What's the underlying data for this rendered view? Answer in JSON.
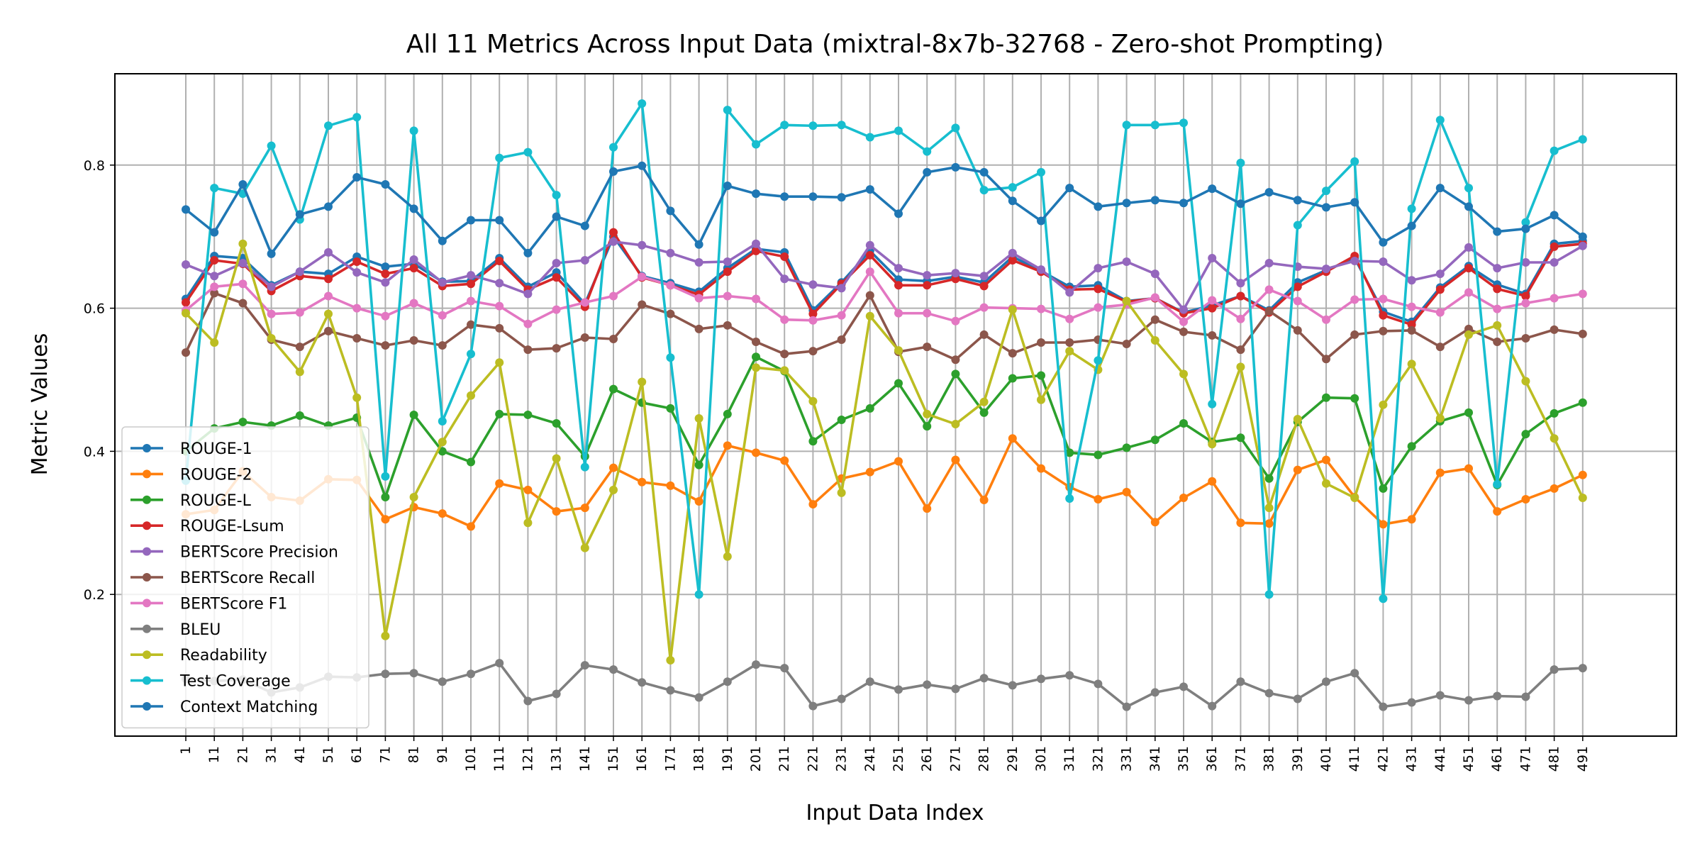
{
  "chart_data": {
    "type": "line",
    "title": "All 11 Metrics Across Input Data (mixtral-8x7b-32768 - Zero-shot Prompting)",
    "xlabel": "Input Data Index",
    "ylabel": "Metric Values",
    "ylim": [
      0.0,
      0.93
    ],
    "yticks": [
      0.2,
      0.4,
      0.6,
      0.8
    ],
    "grid": true,
    "legend_position": "lower-left",
    "x": [
      1,
      11,
      21,
      31,
      41,
      51,
      61,
      71,
      81,
      91,
      101,
      111,
      121,
      131,
      141,
      151,
      161,
      171,
      181,
      191,
      201,
      211,
      221,
      231,
      241,
      251,
      261,
      271,
      281,
      291,
      301,
      311,
      321,
      331,
      341,
      351,
      361,
      371,
      381,
      391,
      401,
      411,
      421,
      431,
      441,
      451,
      461,
      471,
      481,
      491
    ],
    "series": [
      {
        "name": "ROUGE-1",
        "color": "#1f77b4",
        "values": [
          0.613,
          0.673,
          0.67,
          0.632,
          0.651,
          0.648,
          0.672,
          0.658,
          0.662,
          0.637,
          0.638,
          0.67,
          0.63,
          0.65,
          0.606,
          0.7,
          0.645,
          0.635,
          0.623,
          0.656,
          0.683,
          0.678,
          0.597,
          0.636,
          0.68,
          0.64,
          0.638,
          0.644,
          0.636,
          0.672,
          0.652,
          0.63,
          0.632,
          0.61,
          0.614,
          0.594,
          0.604,
          0.617,
          0.597,
          0.636,
          0.653,
          0.67,
          0.595,
          0.581,
          0.629,
          0.659,
          0.633,
          0.62,
          0.69,
          0.694
        ]
      },
      {
        "name": "ROUGE-2",
        "color": "#ff7f0e",
        "values": [
          0.312,
          0.318,
          0.372,
          0.336,
          0.331,
          0.361,
          0.36,
          0.305,
          0.322,
          0.313,
          0.295,
          0.355,
          0.346,
          0.316,
          0.321,
          0.377,
          0.357,
          0.352,
          0.33,
          0.408,
          0.398,
          0.387,
          0.326,
          0.362,
          0.371,
          0.386,
          0.32,
          0.388,
          0.332,
          0.418,
          0.376,
          0.35,
          0.333,
          0.343,
          0.301,
          0.335,
          0.358,
          0.3,
          0.299,
          0.374,
          0.388,
          0.336,
          0.298,
          0.305,
          0.37,
          0.376,
          0.316,
          0.333,
          0.348,
          0.367
        ]
      },
      {
        "name": "ROUGE-L",
        "color": "#2ca02c",
        "values": [
          0.4,
          0.432,
          0.441,
          0.436,
          0.45,
          0.436,
          0.447,
          0.336,
          0.451,
          0.4,
          0.385,
          0.452,
          0.451,
          0.439,
          0.393,
          0.487,
          0.468,
          0.46,
          0.381,
          0.452,
          0.532,
          0.512,
          0.414,
          0.444,
          0.46,
          0.495,
          0.435,
          0.508,
          0.454,
          0.502,
          0.506,
          0.398,
          0.395,
          0.405,
          0.416,
          0.439,
          0.413,
          0.419,
          0.362,
          0.441,
          0.475,
          0.474,
          0.348,
          0.407,
          0.442,
          0.454,
          0.353,
          0.424,
          0.453,
          0.468
        ]
      },
      {
        "name": "ROUGE-Lsum",
        "color": "#d62728",
        "values": [
          0.608,
          0.667,
          0.662,
          0.624,
          0.645,
          0.641,
          0.665,
          0.648,
          0.656,
          0.631,
          0.634,
          0.666,
          0.626,
          0.643,
          0.602,
          0.706,
          0.643,
          0.632,
          0.619,
          0.651,
          0.68,
          0.672,
          0.592,
          0.634,
          0.674,
          0.632,
          0.632,
          0.641,
          0.631,
          0.667,
          0.651,
          0.626,
          0.627,
          0.609,
          0.614,
          0.593,
          0.6,
          0.617,
          0.594,
          0.63,
          0.651,
          0.673,
          0.59,
          0.577,
          0.626,
          0.656,
          0.627,
          0.617,
          0.686,
          0.69
        ]
      },
      {
        "name": "BERTScore Precision",
        "color": "#9467bd",
        "values": [
          0.661,
          0.645,
          0.663,
          0.63,
          0.651,
          0.678,
          0.65,
          0.636,
          0.668,
          0.636,
          0.646,
          0.635,
          0.62,
          0.663,
          0.667,
          0.693,
          0.688,
          0.677,
          0.664,
          0.665,
          0.69,
          0.641,
          0.633,
          0.628,
          0.688,
          0.656,
          0.646,
          0.649,
          0.645,
          0.677,
          0.654,
          0.622,
          0.656,
          0.665,
          0.648,
          0.598,
          0.67,
          0.635,
          0.663,
          0.658,
          0.655,
          0.666,
          0.665,
          0.639,
          0.648,
          0.685,
          0.656,
          0.664,
          0.664,
          0.687
        ]
      },
      {
        "name": "BERTScore Recall",
        "color": "#8c564b",
        "values": [
          0.538,
          0.621,
          0.607,
          0.556,
          0.546,
          0.568,
          0.558,
          0.548,
          0.555,
          0.548,
          0.577,
          0.572,
          0.542,
          0.544,
          0.559,
          0.557,
          0.605,
          0.592,
          0.571,
          0.576,
          0.553,
          0.536,
          0.54,
          0.556,
          0.618,
          0.539,
          0.546,
          0.528,
          0.563,
          0.537,
          0.552,
          0.552,
          0.556,
          0.55,
          0.584,
          0.567,
          0.562,
          0.542,
          0.596,
          0.569,
          0.529,
          0.563,
          0.568,
          0.569,
          0.546,
          0.571,
          0.553,
          0.558,
          0.57,
          0.564
        ]
      },
      {
        "name": "BERTScore F1",
        "color": "#e377c2",
        "values": [
          0.597,
          0.63,
          0.634,
          0.592,
          0.594,
          0.617,
          0.6,
          0.589,
          0.607,
          0.59,
          0.61,
          0.603,
          0.578,
          0.598,
          0.608,
          0.617,
          0.644,
          0.632,
          0.614,
          0.617,
          0.613,
          0.584,
          0.583,
          0.59,
          0.651,
          0.593,
          0.593,
          0.582,
          0.601,
          0.6,
          0.599,
          0.585,
          0.601,
          0.605,
          0.615,
          0.581,
          0.611,
          0.585,
          0.626,
          0.61,
          0.584,
          0.612,
          0.613,
          0.602,
          0.594,
          0.622,
          0.599,
          0.607,
          0.614,
          0.62
        ]
      },
      {
        "name": "BLEU",
        "color": "#7f7f7f",
        "values": [
          0.082,
          0.079,
          0.081,
          0.063,
          0.07,
          0.085,
          0.084,
          0.089,
          0.09,
          0.078,
          0.089,
          0.104,
          0.051,
          0.061,
          0.101,
          0.095,
          0.077,
          0.066,
          0.056,
          0.078,
          0.102,
          0.097,
          0.044,
          0.054,
          0.078,
          0.067,
          0.074,
          0.068,
          0.083,
          0.073,
          0.082,
          0.087,
          0.075,
          0.043,
          0.063,
          0.071,
          0.044,
          0.078,
          0.062,
          0.054,
          0.078,
          0.09,
          0.043,
          0.049,
          0.059,
          0.052,
          0.058,
          0.057,
          0.095,
          0.097
        ]
      },
      {
        "name": "Readability",
        "color": "#bcbd22",
        "values": [
          0.593,
          0.552,
          0.69,
          0.558,
          0.511,
          0.592,
          0.475,
          0.142,
          0.336,
          0.413,
          0.478,
          0.524,
          0.3,
          0.39,
          0.265,
          0.346,
          0.497,
          0.108,
          0.446,
          0.253,
          0.517,
          0.513,
          0.47,
          0.342,
          0.589,
          0.541,
          0.452,
          0.438,
          0.469,
          0.598,
          0.472,
          0.54,
          0.514,
          0.61,
          0.555,
          0.508,
          0.41,
          0.518,
          0.321,
          0.445,
          0.355,
          0.335,
          0.465,
          0.522,
          0.446,
          0.563,
          0.576,
          0.498,
          0.418,
          0.335
        ]
      },
      {
        "name": "Test Coverage",
        "color": "#17becf",
        "values": [
          0.359,
          0.768,
          0.76,
          0.827,
          0.724,
          0.855,
          0.867,
          0.365,
          0.848,
          0.442,
          0.536,
          0.81,
          0.818,
          0.758,
          0.378,
          0.825,
          0.886,
          0.531,
          0.2,
          0.877,
          0.829,
          0.856,
          0.855,
          0.856,
          0.839,
          0.848,
          0.819,
          0.852,
          0.765,
          0.769,
          0.79,
          0.334,
          0.527,
          0.856,
          0.856,
          0.859,
          0.466,
          0.803,
          0.2,
          0.716,
          0.764,
          0.805,
          0.194,
          0.739,
          0.863,
          0.768,
          0.354,
          0.72,
          0.82,
          0.836
        ]
      },
      {
        "name": "Context Matching",
        "color": "#1f77b4",
        "values": [
          0.738,
          0.706,
          0.773,
          0.676,
          0.731,
          0.742,
          0.783,
          0.773,
          0.739,
          0.694,
          0.723,
          0.723,
          0.677,
          0.728,
          0.715,
          0.791,
          0.799,
          0.736,
          0.689,
          0.771,
          0.76,
          0.756,
          0.756,
          0.755,
          0.766,
          0.732,
          0.79,
          0.797,
          0.79,
          0.75,
          0.722,
          0.768,
          0.742,
          0.747,
          0.751,
          0.747,
          0.767,
          0.746,
          0.762,
          0.751,
          0.741,
          0.748,
          0.692,
          0.715,
          0.768,
          0.742,
          0.707,
          0.711,
          0.73,
          0.7
        ]
      }
    ]
  }
}
